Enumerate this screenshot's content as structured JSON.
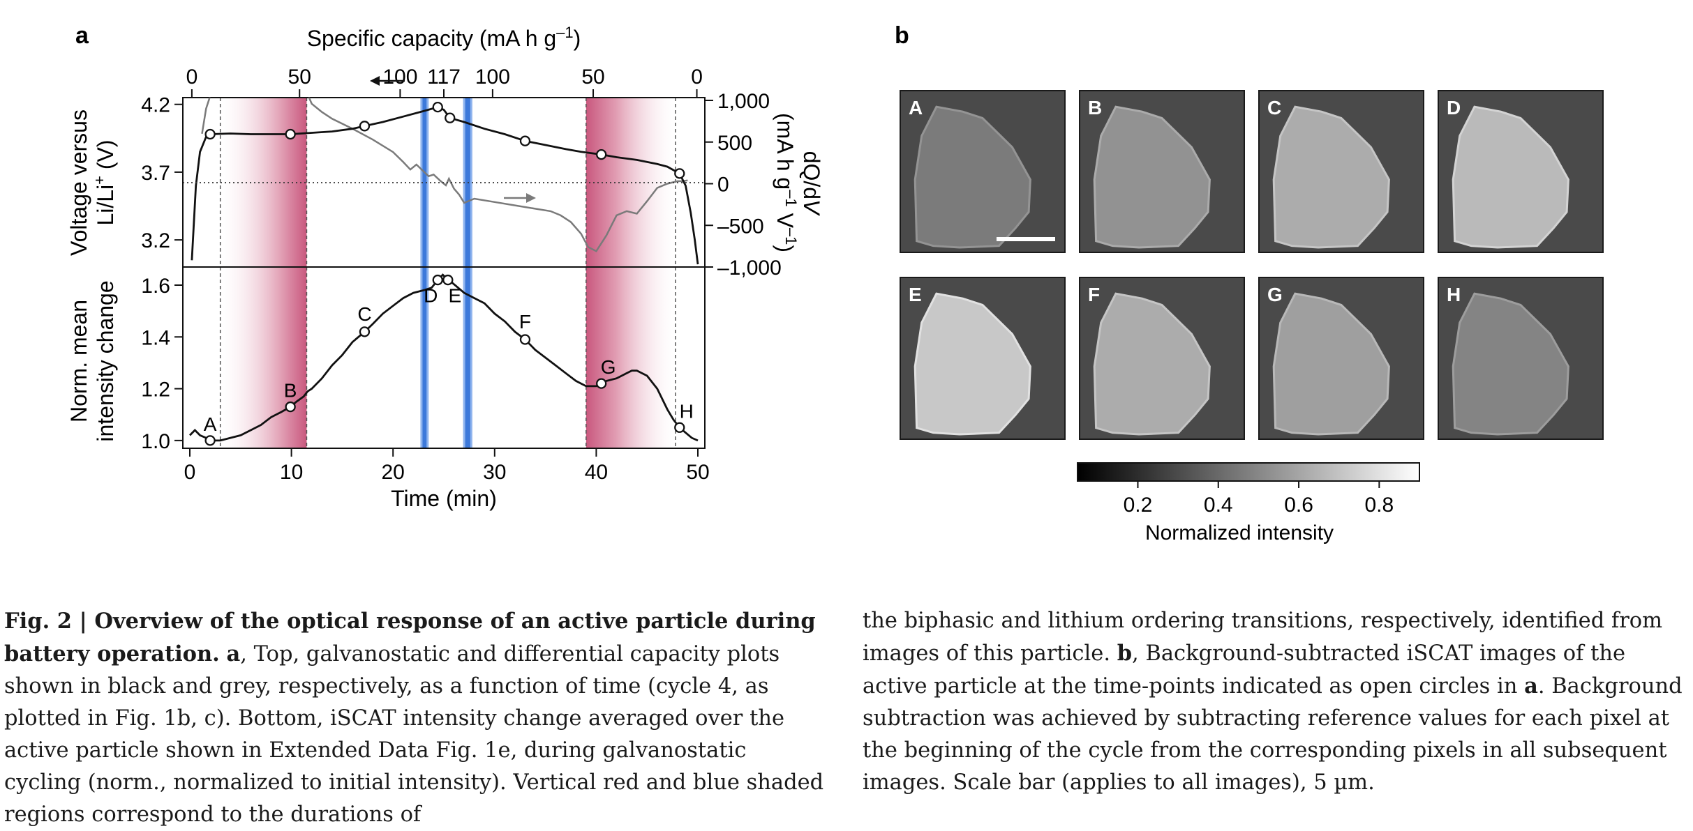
{
  "panel_a": {
    "label": "a",
    "top_axis_label_main": "Specific capacity (mA h g",
    "top_axis_label_exp": "–1",
    "top_axis_label_end": ")",
    "left_top_label_line1": "Voltage versus",
    "left_top_label_line2": "Li/Li",
    "left_top_label_line2_sup": "+",
    "left_top_label_line2_end": " (V)",
    "right_label_line1_a": "dQ/d",
    "right_label_line1_b": "V",
    "right_label_line2_a": "(mA h g",
    "right_label_line2_exp": "–1",
    "right_label_line2_b": " V",
    "right_label_line2_exp2": "–1",
    "right_label_line2_c": ")",
    "left_bottom_label_line1": "Norm. mean",
    "left_bottom_label_line2": "intensity change",
    "bottom_axis_label": "Time (min)"
  },
  "panel_b": {
    "label": "b",
    "images": [
      {
        "label": "A",
        "intensity": 0.35
      },
      {
        "label": "B",
        "intensity": 0.48
      },
      {
        "label": "C",
        "intensity": 0.62
      },
      {
        "label": "D",
        "intensity": 0.7
      },
      {
        "label": "E",
        "intensity": 0.78
      },
      {
        "label": "F",
        "intensity": 0.62
      },
      {
        "label": "G",
        "intensity": 0.55
      },
      {
        "label": "H",
        "intensity": 0.4
      }
    ],
    "colorbar_ticks": [
      "0.2",
      "0.4",
      "0.6",
      "0.8"
    ],
    "colorbar_label": "Normalized intensity"
  },
  "chart_data": [
    {
      "type": "line",
      "name": "top",
      "xlabel": "Time (min)",
      "xlim": [
        0,
        50
      ],
      "top_axis_ticks": [
        {
          "time": 0.2,
          "label": "0"
        },
        {
          "time": 10.8,
          "label": "50"
        },
        {
          "time": 20.7,
          "label": "100"
        },
        {
          "time": 25.0,
          "label": "117"
        },
        {
          "time": 29.8,
          "label": "100"
        },
        {
          "time": 39.7,
          "label": "50"
        },
        {
          "time": 49.9,
          "label": "0"
        }
      ],
      "ylim_left": [
        3.0,
        4.25
      ],
      "yticks_left": [
        "3.2",
        "3.7",
        "4.2"
      ],
      "ylim_right": [
        -1000,
        1000
      ],
      "yticks_right": [
        "1,000",
        "500",
        "0",
        "–500",
        "–1,000"
      ],
      "red_regions": [
        [
          3.0,
          11.5
        ],
        [
          39.0,
          47.8
        ]
      ],
      "blue_regions": [
        [
          22.9,
          23.3
        ],
        [
          27.1,
          27.6
        ]
      ],
      "voltage": {
        "x": [
          0.2,
          0.6,
          1.0,
          1.6,
          2.0,
          4,
          6,
          8,
          9.9,
          12,
          14,
          16,
          17.2,
          19,
          21,
          23,
          24.4,
          25.0,
          25.6,
          27,
          29,
          31,
          33,
          35,
          37,
          38.5,
          40.5,
          42,
          44,
          46,
          47,
          48.2,
          48.8,
          49.3,
          49.7,
          50
        ],
        "y": [
          3.05,
          3.6,
          3.85,
          3.96,
          3.98,
          3.985,
          3.98,
          3.98,
          3.98,
          3.99,
          4.0,
          4.02,
          4.04,
          4.07,
          4.11,
          4.15,
          4.18,
          4.16,
          4.1,
          4.07,
          4.02,
          3.98,
          3.93,
          3.9,
          3.87,
          3.85,
          3.83,
          3.81,
          3.79,
          3.76,
          3.74,
          3.69,
          3.6,
          3.4,
          3.2,
          3.02
        ]
      },
      "dqdv": {
        "x": [
          1.2,
          1.6,
          2.0,
          2.4,
          11.5,
          12,
          13,
          14,
          16,
          18,
          20,
          21,
          21.7,
          22.3,
          22.9,
          23.5,
          24,
          24.6,
          25.2,
          25.5,
          26,
          26.5,
          27,
          28,
          30,
          32,
          34,
          35.5,
          36.5,
          37.5,
          38.5,
          39.2,
          40,
          41,
          42,
          43,
          44,
          45,
          46,
          47,
          48,
          48.5,
          49
        ],
        "y": [
          600,
          900,
          1050,
          1100,
          1100,
          960,
          860,
          780,
          660,
          530,
          380,
          260,
          170,
          230,
          160,
          90,
          110,
          40,
          -20,
          60,
          -60,
          -130,
          -230,
          -180,
          -220,
          -260,
          -300,
          -330,
          -380,
          -460,
          -600,
          -760,
          -810,
          -620,
          -380,
          -330,
          -360,
          -210,
          -50,
          0,
          30,
          30,
          40
        ]
      },
      "markers_time": [
        2,
        9.9,
        17.2,
        24.4,
        25.6,
        33,
        40.5,
        48.2
      ]
    },
    {
      "type": "line",
      "name": "bottom",
      "xlabel": "Time (min)",
      "xlim": [
        0,
        50
      ],
      "xticks": [
        "0",
        "10",
        "20",
        "30",
        "40",
        "50"
      ],
      "ylim": [
        0.97,
        1.67
      ],
      "yticks": [
        "1.0",
        "1.2",
        "1.4",
        "1.6"
      ],
      "intensity": {
        "x": [
          0,
          0.5,
          1,
          1.6,
          2.0,
          3,
          4,
          5,
          6,
          7,
          8,
          9,
          9.9,
          10.5,
          11.2,
          11.6,
          12,
          13,
          14,
          15,
          16,
          17.2,
          18,
          19,
          20,
          21,
          22,
          23,
          23.8,
          24.4,
          24.9,
          25.4,
          25.8,
          26.4,
          27,
          28,
          29,
          30,
          31,
          32,
          33,
          34,
          35,
          36,
          37,
          38,
          39,
          40,
          40.5,
          41,
          42,
          43,
          43.5,
          44,
          45,
          46,
          47,
          47.6,
          48.2,
          48.8,
          49.4,
          50
        ],
        "y": [
          1.02,
          1.04,
          1.02,
          1.01,
          1.0,
          1.0,
          1.01,
          1.02,
          1.04,
          1.06,
          1.09,
          1.11,
          1.13,
          1.15,
          1.17,
          1.19,
          1.2,
          1.24,
          1.29,
          1.33,
          1.38,
          1.42,
          1.45,
          1.49,
          1.52,
          1.55,
          1.57,
          1.58,
          1.59,
          1.62,
          1.64,
          1.62,
          1.61,
          1.59,
          1.57,
          1.55,
          1.53,
          1.49,
          1.46,
          1.42,
          1.39,
          1.35,
          1.32,
          1.29,
          1.26,
          1.23,
          1.21,
          1.21,
          1.22,
          1.23,
          1.24,
          1.26,
          1.27,
          1.27,
          1.25,
          1.2,
          1.12,
          1.08,
          1.05,
          1.03,
          1.01,
          1.0
        ]
      },
      "markers": [
        {
          "label": "A",
          "x": 2.0,
          "y": 1.0
        },
        {
          "label": "B",
          "x": 9.9,
          "y": 1.13
        },
        {
          "label": "C",
          "x": 17.2,
          "y": 1.42
        },
        {
          "label": "D",
          "x": 24.4,
          "y": 1.62
        },
        {
          "label": "E",
          "x": 25.4,
          "y": 1.62
        },
        {
          "label": "F",
          "x": 33.0,
          "y": 1.39
        },
        {
          "label": "G",
          "x": 40.5,
          "y": 1.22
        },
        {
          "label": "H",
          "x": 48.2,
          "y": 1.05
        }
      ]
    }
  ],
  "caption": {
    "left": {
      "fig_label": "Fig. 2 | Overview of the optical response of an active particle during battery operation.",
      "bold_a": "a",
      "text1": ", Top, galvanostatic and differential capacity plots shown in black and grey, respectively, as a function of time (cycle 4, as plotted in Fig. 1b, c). Bottom, iSCAT intensity change averaged over the active particle shown in Extended Data Fig. 1e, during galvanostatic cycling (norm., normalized to initial intensity). Vertical red and blue shaded regions correspond to the durations of"
    },
    "right": {
      "text1": "the biphasic and lithium ordering transitions, respectively, identified from images of this particle. ",
      "bold_b": "b",
      "text2": ", Background-subtracted iSCAT images of the active particle at the time-points indicated as open circles in ",
      "bold_a": "a",
      "text3": ". Background subtraction was achieved by subtracting reference values for each pixel at the beginning of the cycle from the corresponding pixels in all subsequent images. Scale bar (applies to all images), 5 µm."
    }
  }
}
